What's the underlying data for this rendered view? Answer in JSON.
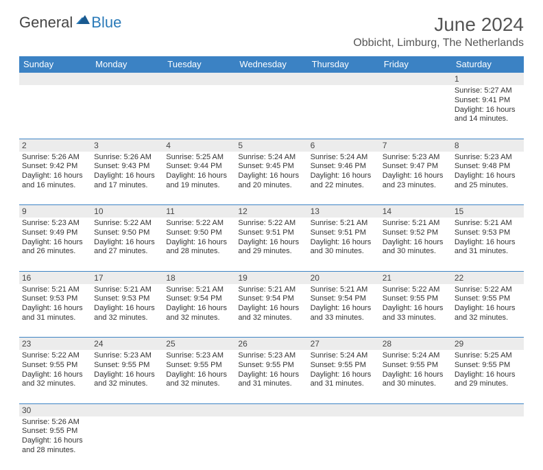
{
  "logo": {
    "general": "General",
    "blue": "Blue"
  },
  "header": {
    "title": "June 2024",
    "location": "Obbicht, Limburg, The Netherlands"
  },
  "colors": {
    "header_bg": "#3b82c4",
    "header_text": "#ffffff",
    "daynum_bg": "#ececec",
    "border": "#3b82c4",
    "text": "#333333",
    "logo_blue": "#2a7ab8",
    "logo_gray": "#444444"
  },
  "weekdays": [
    "Sunday",
    "Monday",
    "Tuesday",
    "Wednesday",
    "Thursday",
    "Friday",
    "Saturday"
  ],
  "weeks": [
    [
      null,
      null,
      null,
      null,
      null,
      null,
      {
        "d": "1",
        "sr": "Sunrise: 5:27 AM",
        "ss": "Sunset: 9:41 PM",
        "dl1": "Daylight: 16 hours",
        "dl2": "and 14 minutes."
      }
    ],
    [
      {
        "d": "2",
        "sr": "Sunrise: 5:26 AM",
        "ss": "Sunset: 9:42 PM",
        "dl1": "Daylight: 16 hours",
        "dl2": "and 16 minutes."
      },
      {
        "d": "3",
        "sr": "Sunrise: 5:26 AM",
        "ss": "Sunset: 9:43 PM",
        "dl1": "Daylight: 16 hours",
        "dl2": "and 17 minutes."
      },
      {
        "d": "4",
        "sr": "Sunrise: 5:25 AM",
        "ss": "Sunset: 9:44 PM",
        "dl1": "Daylight: 16 hours",
        "dl2": "and 19 minutes."
      },
      {
        "d": "5",
        "sr": "Sunrise: 5:24 AM",
        "ss": "Sunset: 9:45 PM",
        "dl1": "Daylight: 16 hours",
        "dl2": "and 20 minutes."
      },
      {
        "d": "6",
        "sr": "Sunrise: 5:24 AM",
        "ss": "Sunset: 9:46 PM",
        "dl1": "Daylight: 16 hours",
        "dl2": "and 22 minutes."
      },
      {
        "d": "7",
        "sr": "Sunrise: 5:23 AM",
        "ss": "Sunset: 9:47 PM",
        "dl1": "Daylight: 16 hours",
        "dl2": "and 23 minutes."
      },
      {
        "d": "8",
        "sr": "Sunrise: 5:23 AM",
        "ss": "Sunset: 9:48 PM",
        "dl1": "Daylight: 16 hours",
        "dl2": "and 25 minutes."
      }
    ],
    [
      {
        "d": "9",
        "sr": "Sunrise: 5:23 AM",
        "ss": "Sunset: 9:49 PM",
        "dl1": "Daylight: 16 hours",
        "dl2": "and 26 minutes."
      },
      {
        "d": "10",
        "sr": "Sunrise: 5:22 AM",
        "ss": "Sunset: 9:50 PM",
        "dl1": "Daylight: 16 hours",
        "dl2": "and 27 minutes."
      },
      {
        "d": "11",
        "sr": "Sunrise: 5:22 AM",
        "ss": "Sunset: 9:50 PM",
        "dl1": "Daylight: 16 hours",
        "dl2": "and 28 minutes."
      },
      {
        "d": "12",
        "sr": "Sunrise: 5:22 AM",
        "ss": "Sunset: 9:51 PM",
        "dl1": "Daylight: 16 hours",
        "dl2": "and 29 minutes."
      },
      {
        "d": "13",
        "sr": "Sunrise: 5:21 AM",
        "ss": "Sunset: 9:51 PM",
        "dl1": "Daylight: 16 hours",
        "dl2": "and 30 minutes."
      },
      {
        "d": "14",
        "sr": "Sunrise: 5:21 AM",
        "ss": "Sunset: 9:52 PM",
        "dl1": "Daylight: 16 hours",
        "dl2": "and 30 minutes."
      },
      {
        "d": "15",
        "sr": "Sunrise: 5:21 AM",
        "ss": "Sunset: 9:53 PM",
        "dl1": "Daylight: 16 hours",
        "dl2": "and 31 minutes."
      }
    ],
    [
      {
        "d": "16",
        "sr": "Sunrise: 5:21 AM",
        "ss": "Sunset: 9:53 PM",
        "dl1": "Daylight: 16 hours",
        "dl2": "and 31 minutes."
      },
      {
        "d": "17",
        "sr": "Sunrise: 5:21 AM",
        "ss": "Sunset: 9:53 PM",
        "dl1": "Daylight: 16 hours",
        "dl2": "and 32 minutes."
      },
      {
        "d": "18",
        "sr": "Sunrise: 5:21 AM",
        "ss": "Sunset: 9:54 PM",
        "dl1": "Daylight: 16 hours",
        "dl2": "and 32 minutes."
      },
      {
        "d": "19",
        "sr": "Sunrise: 5:21 AM",
        "ss": "Sunset: 9:54 PM",
        "dl1": "Daylight: 16 hours",
        "dl2": "and 32 minutes."
      },
      {
        "d": "20",
        "sr": "Sunrise: 5:21 AM",
        "ss": "Sunset: 9:54 PM",
        "dl1": "Daylight: 16 hours",
        "dl2": "and 33 minutes."
      },
      {
        "d": "21",
        "sr": "Sunrise: 5:22 AM",
        "ss": "Sunset: 9:55 PM",
        "dl1": "Daylight: 16 hours",
        "dl2": "and 33 minutes."
      },
      {
        "d": "22",
        "sr": "Sunrise: 5:22 AM",
        "ss": "Sunset: 9:55 PM",
        "dl1": "Daylight: 16 hours",
        "dl2": "and 32 minutes."
      }
    ],
    [
      {
        "d": "23",
        "sr": "Sunrise: 5:22 AM",
        "ss": "Sunset: 9:55 PM",
        "dl1": "Daylight: 16 hours",
        "dl2": "and 32 minutes."
      },
      {
        "d": "24",
        "sr": "Sunrise: 5:23 AM",
        "ss": "Sunset: 9:55 PM",
        "dl1": "Daylight: 16 hours",
        "dl2": "and 32 minutes."
      },
      {
        "d": "25",
        "sr": "Sunrise: 5:23 AM",
        "ss": "Sunset: 9:55 PM",
        "dl1": "Daylight: 16 hours",
        "dl2": "and 32 minutes."
      },
      {
        "d": "26",
        "sr": "Sunrise: 5:23 AM",
        "ss": "Sunset: 9:55 PM",
        "dl1": "Daylight: 16 hours",
        "dl2": "and 31 minutes."
      },
      {
        "d": "27",
        "sr": "Sunrise: 5:24 AM",
        "ss": "Sunset: 9:55 PM",
        "dl1": "Daylight: 16 hours",
        "dl2": "and 31 minutes."
      },
      {
        "d": "28",
        "sr": "Sunrise: 5:24 AM",
        "ss": "Sunset: 9:55 PM",
        "dl1": "Daylight: 16 hours",
        "dl2": "and 30 minutes."
      },
      {
        "d": "29",
        "sr": "Sunrise: 5:25 AM",
        "ss": "Sunset: 9:55 PM",
        "dl1": "Daylight: 16 hours",
        "dl2": "and 29 minutes."
      }
    ],
    [
      {
        "d": "30",
        "sr": "Sunrise: 5:26 AM",
        "ss": "Sunset: 9:55 PM",
        "dl1": "Daylight: 16 hours",
        "dl2": "and 28 minutes."
      },
      null,
      null,
      null,
      null,
      null,
      null
    ]
  ]
}
